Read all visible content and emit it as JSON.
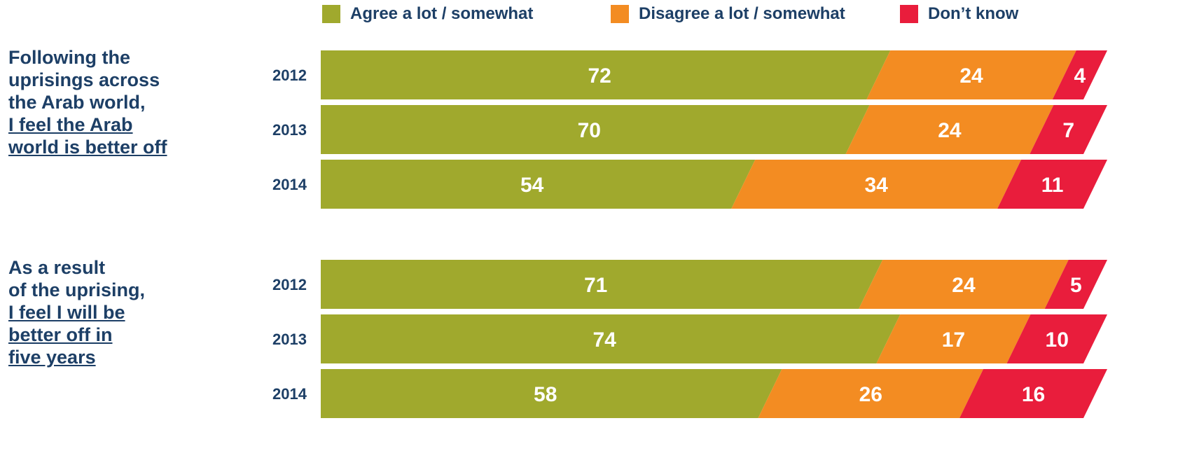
{
  "legend": [
    {
      "label": "Agree a lot / somewhat",
      "color": "#a0a92d"
    },
    {
      "label": "Disagree a lot / somewhat",
      "color": "#f38c22"
    },
    {
      "label": "Don’t know",
      "color": "#e91d3c"
    }
  ],
  "chart_data": {
    "type": "bar",
    "stacked": true,
    "orientation": "horizontal",
    "series_names": [
      "Agree a lot / somewhat",
      "Disagree a lot / somewhat",
      "Don’t know"
    ],
    "colors": [
      "#a0a92d",
      "#f38c22",
      "#e91d3c"
    ],
    "groups": [
      {
        "question_lines": [
          "Following the",
          "uprisings across",
          "the Arab world,"
        ],
        "question_underlined_lines": [
          "I feel the Arab",
          "world is better off"
        ],
        "rows": [
          {
            "year": "2012",
            "values": [
              72,
              24,
              4
            ]
          },
          {
            "year": "2013",
            "values": [
              70,
              24,
              7
            ]
          },
          {
            "year": "2014",
            "values": [
              54,
              34,
              11
            ]
          }
        ]
      },
      {
        "question_lines": [
          "As a result",
          "of the uprising,"
        ],
        "question_underlined_lines": [
          "I feel I will be",
          "better off in",
          "five years"
        ],
        "rows": [
          {
            "year": "2012",
            "values": [
              71,
              24,
              5
            ]
          },
          {
            "year": "2013",
            "values": [
              74,
              17,
              10
            ]
          },
          {
            "year": "2014",
            "values": [
              58,
              26,
              16
            ]
          }
        ]
      }
    ]
  }
}
